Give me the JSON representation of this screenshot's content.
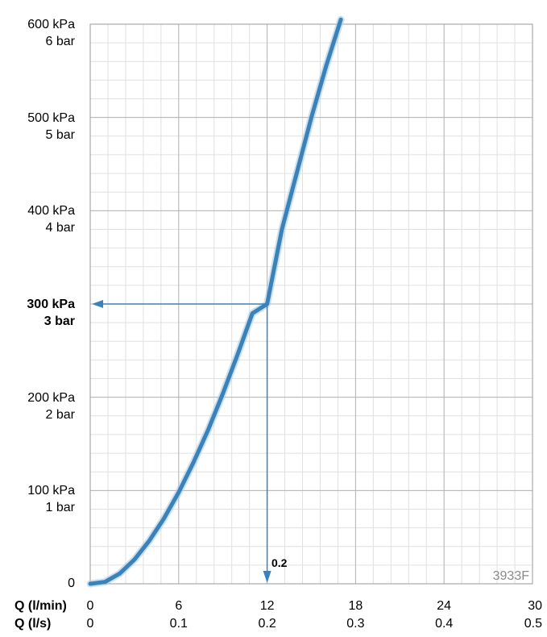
{
  "chart_data": {
    "type": "line",
    "x_axis_primary": {
      "label": "Q (l/min)",
      "ticks": [
        "0",
        "6",
        "12",
        "18",
        "24",
        "30"
      ],
      "range": [
        0,
        30
      ]
    },
    "x_axis_secondary": {
      "label": "Q (l/s)",
      "ticks": [
        "0",
        "0.1",
        "0.2",
        "0.3",
        "0.4",
        "0.5"
      ],
      "range": [
        0,
        0.5
      ]
    },
    "y_axis": {
      "range": [
        0,
        600
      ],
      "ticks": [
        {
          "value": 600,
          "kpa": "600 kPa",
          "bar": "6 bar",
          "bold": false
        },
        {
          "value": 500,
          "kpa": "500 kPa",
          "bar": "5 bar",
          "bold": false
        },
        {
          "value": 400,
          "kpa": "400 kPa",
          "bar": "4 bar",
          "bold": false
        },
        {
          "value": 300,
          "kpa": "300 kPa",
          "bar": "3 bar",
          "bold": true
        },
        {
          "value": 200,
          "kpa": "200 kPa",
          "bar": "2 bar",
          "bold": false
        },
        {
          "value": 100,
          "kpa": "100 kPa",
          "bar": "1 bar",
          "bold": false
        },
        {
          "value": 0,
          "kpa": "0",
          "bar": "",
          "bold": false
        }
      ]
    },
    "series": [
      {
        "color": "#3a82b8",
        "x": [
          0,
          1,
          2,
          3,
          4,
          5,
          6,
          7,
          8,
          9,
          10,
          11,
          12,
          13,
          14,
          15,
          16,
          17
        ],
        "y": [
          0,
          2,
          11,
          26,
          46,
          70,
          98,
          130,
          165,
          204,
          246,
          290,
          300,
          380,
          440,
          500,
          555,
          605
        ]
      }
    ],
    "annotation": {
      "x": 12,
      "y": 300,
      "label": "0.2",
      "color": "#3a82b8"
    },
    "grid": true,
    "code": "3933F"
  }
}
